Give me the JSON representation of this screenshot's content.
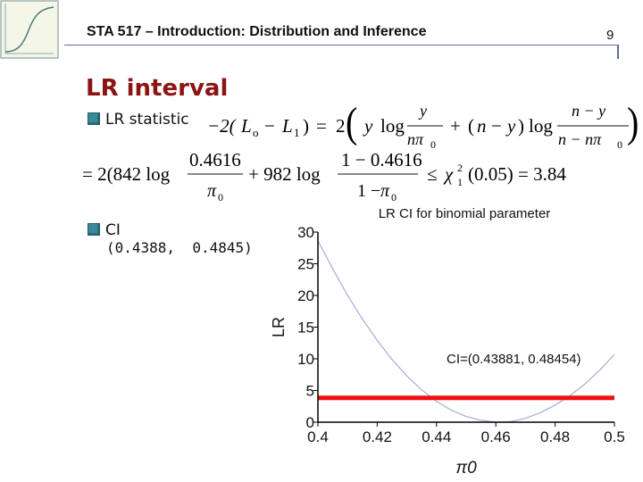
{
  "header": {
    "course_title": "STA 517 – Introduction: Distribution and Inference",
    "page_number": "9"
  },
  "section_title": "LR interval",
  "bullets": {
    "lr_statistic_label": "LR statistic",
    "ci_label": "CI",
    "ci_value": "(0.4388,  0.4845)"
  },
  "equations": {
    "lr_def": "−2(L0 − L1) = 2( y log y/(nπ0) + (n − y) log (n − y)/(n − nπ0) )",
    "lr_numeric": "= 2(842 log 0.4616/π0 + 982 log (1−0.4616)/(1−π0) ≤ χ²1(0.05) = 3.84"
  },
  "chart_data": {
    "type": "line",
    "title": "LR CI for binomial parameter",
    "xlabel": "π0",
    "ylabel": "LR",
    "xlim": [
      0.4,
      0.5
    ],
    "ylim": [
      0,
      30
    ],
    "xticks": [
      "0.4",
      "0.42",
      "0.44",
      "0.46",
      "0.48",
      "0.5"
    ],
    "yticks": [
      "0",
      "5",
      "10",
      "15",
      "20",
      "25",
      "30"
    ],
    "annotation": "CI=(0.43881, 0.48454)",
    "threshold": 3.84,
    "colors": {
      "curve": "#a9acd6",
      "threshold": "#ee1111",
      "axes": "#000000"
    },
    "series": [
      {
        "x": [
          0.4,
          0.405,
          0.41,
          0.415,
          0.42,
          0.425,
          0.43,
          0.435,
          0.44,
          0.445,
          0.45,
          0.455,
          0.46,
          0.4616,
          0.465,
          0.47,
          0.475,
          0.48,
          0.485,
          0.49,
          0.495,
          0.5
        ],
        "values": [
          28.6,
          24.2,
          20.0,
          16.3,
          12.9,
          9.9,
          7.3,
          5.1,
          3.3,
          1.9,
          0.9,
          0.3,
          0.0,
          0.0,
          0.1,
          0.6,
          1.5,
          2.7,
          4.2,
          6.0,
          8.2,
          10.7
        ]
      }
    ]
  }
}
